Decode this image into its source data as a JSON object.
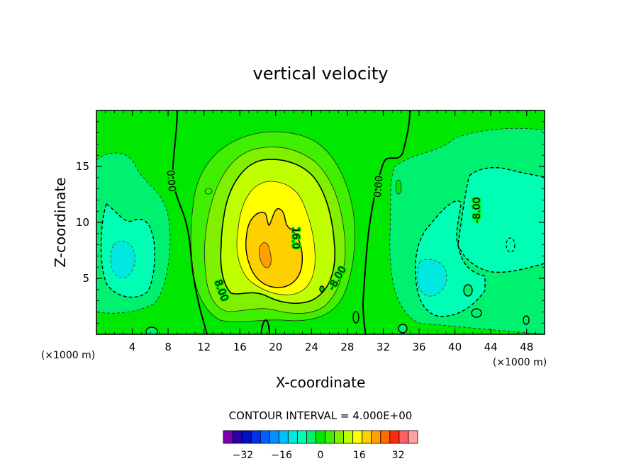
{
  "chart_data": {
    "type": "heatmap",
    "subtype": "filled-contour",
    "title": "vertical velocity",
    "xlabel": "X-coordinate",
    "ylabel": "Z-coordinate",
    "x_unit_label": "(×1000 m)",
    "x_unit_label_right": "(×1000 m)",
    "xlim": [
      0,
      50
    ],
    "ylim": [
      0,
      20
    ],
    "x_ticks": [
      4,
      8,
      12,
      16,
      20,
      24,
      28,
      32,
      36,
      40,
      44,
      48
    ],
    "y_ticks": [
      5,
      10,
      15
    ],
    "contour_interval_text": "CONTOUR INTERVAL = 4.000E+00",
    "contour_interval": 4,
    "contour_labels": [
      {
        "text": "0.00",
        "x": 8.3,
        "z": 13.7,
        "rotate": 85
      },
      {
        "text": "0.00",
        "x": 31.5,
        "z": 13.2,
        "rotate": -85
      },
      {
        "text": "8.00",
        "x": 13.9,
        "z": 3.9,
        "rotate": 70
      },
      {
        "text": "-8.00",
        "x": 26.9,
        "z": 5.0,
        "rotate": -60
      },
      {
        "text": "16.0",
        "x": 22.2,
        "z": 8.6,
        "rotate": 90
      },
      {
        "text": "-8.00",
        "x": 42.5,
        "z": 11.1,
        "rotate": -90
      }
    ],
    "field_features": [
      {
        "kind": "updraft",
        "peak": 22,
        "x": 19.0,
        "z": 7.5
      },
      {
        "kind": "downdraft",
        "peak": -14,
        "x": 3.2,
        "z": 6.5
      },
      {
        "kind": "downdraft",
        "peak": -13,
        "x": 46.0,
        "z": 11.0
      },
      {
        "kind": "downdraft",
        "peak": -14,
        "x": 38.0,
        "z": 5.0
      }
    ],
    "colorbar": {
      "ticks": [
        "-32",
        "-16",
        "0",
        "16",
        "32"
      ],
      "levels": [
        -40,
        -36,
        -32,
        -28,
        -24,
        -20,
        -16,
        -12,
        -8,
        -4,
        0,
        4,
        8,
        12,
        16,
        20,
        24,
        28,
        32,
        36,
        40
      ],
      "colors": [
        "#7a00b0",
        "#2a00a8",
        "#0010c8",
        "#0030e8",
        "#0060ff",
        "#0090ff",
        "#00c0ff",
        "#00e8e0",
        "#00ffb4",
        "#00f070",
        "#00e800",
        "#40f000",
        "#80f000",
        "#c0ff00",
        "#ffff00",
        "#ffd000",
        "#ffa000",
        "#ff6a00",
        "#ff2a10",
        "#ff6060",
        "#ffa0a0"
      ]
    }
  }
}
